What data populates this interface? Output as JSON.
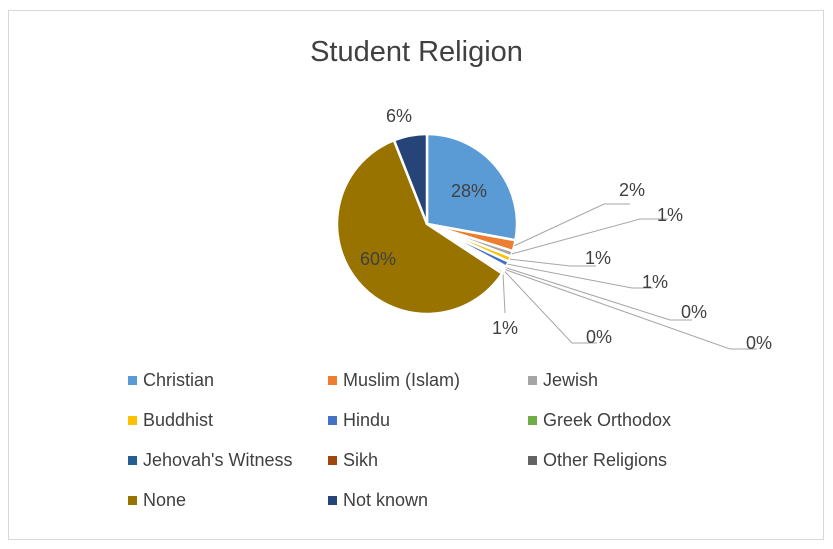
{
  "chart_data": {
    "type": "pie",
    "title": "Student Religion",
    "series": [
      {
        "name": "Christian",
        "value": 28,
        "label": "28%",
        "color": "#5b9bd5"
      },
      {
        "name": "Muslim (Islam)",
        "value": 2,
        "label": "2%",
        "color": "#ed7d31"
      },
      {
        "name": "Jewish",
        "value": 1,
        "label": "1%",
        "color": "#a5a5a5"
      },
      {
        "name": "Buddhist",
        "value": 1,
        "label": "1%",
        "color": "#ffc000"
      },
      {
        "name": "Hindu",
        "value": 1,
        "label": "1%",
        "color": "#4472c4"
      },
      {
        "name": "Greek Orthodox",
        "value": 0.4,
        "label": "0%",
        "color": "#70ad47"
      },
      {
        "name": "Jehovah's Witness",
        "value": 0.3,
        "label": "0%",
        "color": "#255e91"
      },
      {
        "name": "Sikh",
        "value": 0.2,
        "label": "0%",
        "color": "#9e480e"
      },
      {
        "name": "Other Religions",
        "value": 0.5,
        "label": "1%",
        "color": "#636363"
      },
      {
        "name": "None",
        "value": 60,
        "label": "60%",
        "color": "#997300"
      },
      {
        "name": "Not known",
        "value": 6,
        "label": "6%",
        "color": "#264478"
      }
    ],
    "legend_position": "bottom",
    "grid": false
  }
}
